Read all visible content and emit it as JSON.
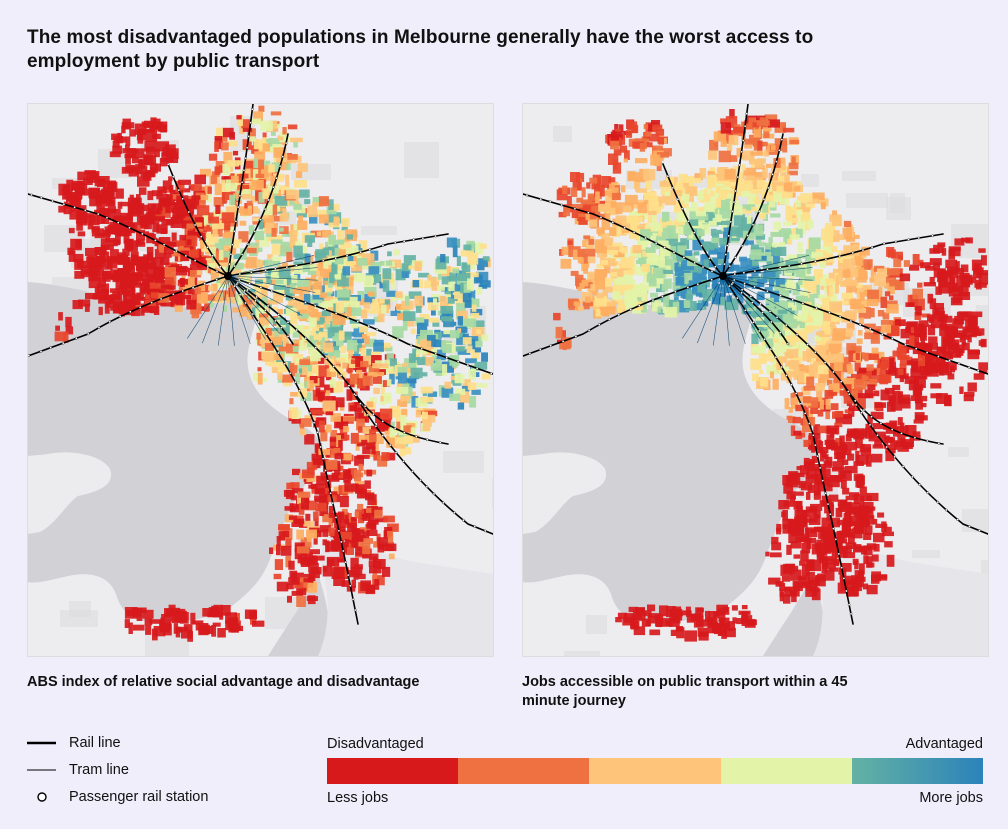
{
  "title": "The most disadvantaged populations in Melbourne generally have the worst access to employment by public transport",
  "maps": [
    {
      "id": "left",
      "caption": "ABS index of relative social advantage and disadvantage",
      "theme": "disadvantage"
    },
    {
      "id": "right",
      "caption": "Jobs accessible on public transport within a 45 minute journey",
      "theme": "jobs"
    }
  ],
  "legend": {
    "items": [
      {
        "label": "Rail line",
        "icon": "rail-line-icon"
      },
      {
        "label": "Tram line",
        "icon": "tram-line-icon"
      },
      {
        "label": "Passenger rail station",
        "icon": "station-circle-icon"
      }
    ],
    "scale_top_left": "Disadvantaged",
    "scale_top_right": "Advantaged",
    "scale_bottom_left": "Less jobs",
    "scale_bottom_right": "More jobs",
    "scale_colors": [
      "#d7191c",
      "#ef7040",
      "#fdc47a",
      "#e3f3a8",
      "#64b2a4",
      "#2b83ba"
    ]
  }
}
